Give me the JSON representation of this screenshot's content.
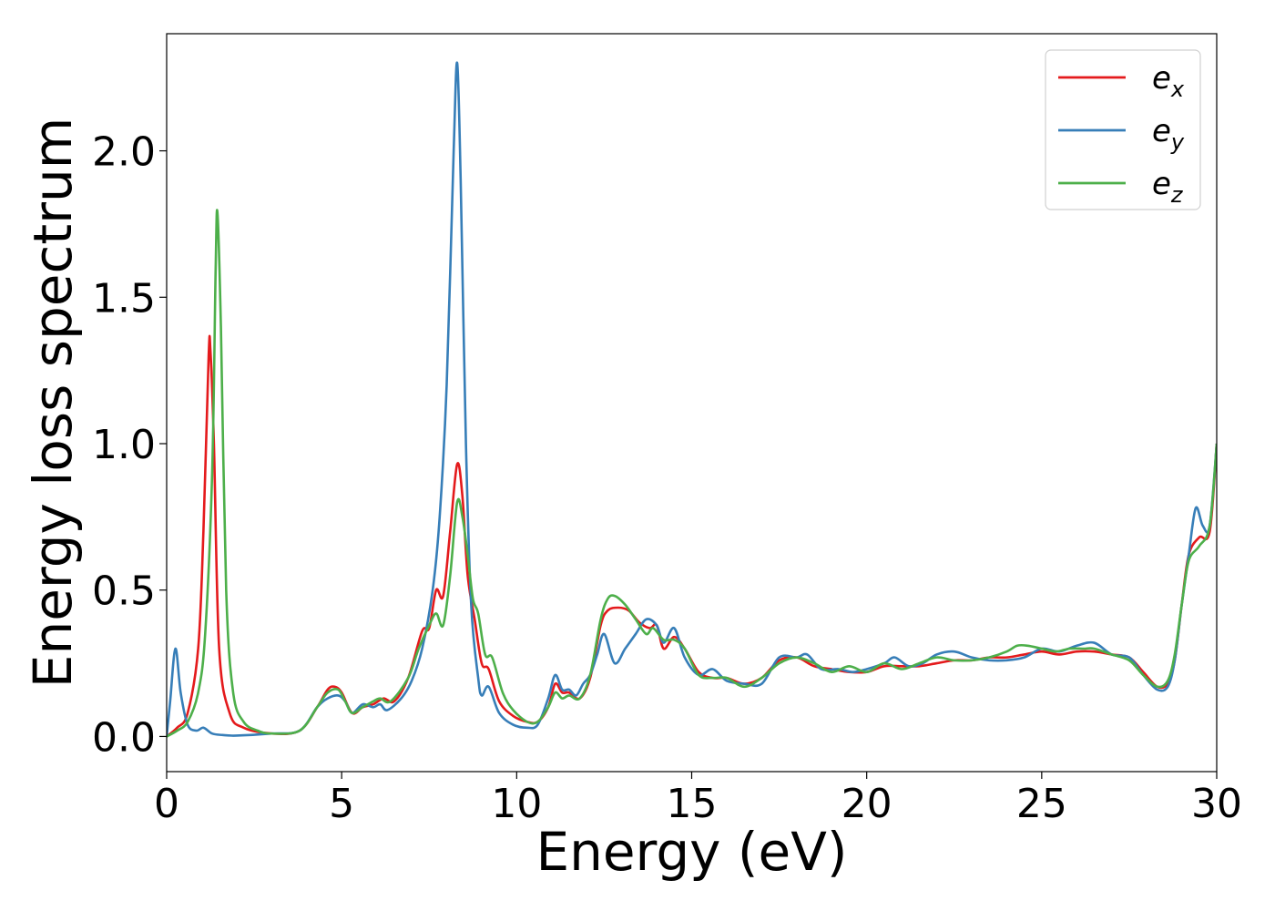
{
  "chart_data": {
    "type": "line",
    "title": "",
    "xlabel": "Energy (eV)",
    "ylabel": "Energy loss spectrum",
    "xlim": [
      0,
      30
    ],
    "ylim": [
      -0.12,
      2.4
    ],
    "xticks": [
      0,
      5,
      10,
      15,
      20,
      25,
      30
    ],
    "xtick_labels": [
      "0",
      "5",
      "10",
      "15",
      "20",
      "25",
      "30"
    ],
    "yticks": [
      0.0,
      0.5,
      1.0,
      1.5,
      2.0
    ],
    "ytick_labels": [
      "0.0",
      "0.5",
      "1.0",
      "1.5",
      "2.0"
    ],
    "grid": false,
    "legend_position": "top-right",
    "series": [
      {
        "name": "e_x",
        "label_base": "e",
        "label_sub": "x",
        "color": "#e41a1c",
        "points": [
          [
            0,
            0.0
          ],
          [
            0.3,
            0.03
          ],
          [
            0.6,
            0.08
          ],
          [
            0.9,
            0.3
          ],
          [
            1.05,
            0.7
          ],
          [
            1.2,
            1.3
          ],
          [
            1.25,
            1.32
          ],
          [
            1.35,
            1.0
          ],
          [
            1.5,
            0.3
          ],
          [
            1.8,
            0.08
          ],
          [
            2.2,
            0.03
          ],
          [
            3,
            0.01
          ],
          [
            3.8,
            0.02
          ],
          [
            4.3,
            0.1
          ],
          [
            4.6,
            0.16
          ],
          [
            4.8,
            0.17
          ],
          [
            5.0,
            0.15
          ],
          [
            5.3,
            0.08
          ],
          [
            5.6,
            0.1
          ],
          [
            5.9,
            0.11
          ],
          [
            6.2,
            0.13
          ],
          [
            6.5,
            0.12
          ],
          [
            6.9,
            0.2
          ],
          [
            7.3,
            0.36
          ],
          [
            7.5,
            0.37
          ],
          [
            7.7,
            0.5
          ],
          [
            7.9,
            0.48
          ],
          [
            8.1,
            0.7
          ],
          [
            8.3,
            0.93
          ],
          [
            8.45,
            0.82
          ],
          [
            8.6,
            0.55
          ],
          [
            8.8,
            0.4
          ],
          [
            9.0,
            0.25
          ],
          [
            9.2,
            0.23
          ],
          [
            9.5,
            0.12
          ],
          [
            9.9,
            0.07
          ],
          [
            10.3,
            0.05
          ],
          [
            10.6,
            0.05
          ],
          [
            10.9,
            0.1
          ],
          [
            11.1,
            0.18
          ],
          [
            11.3,
            0.15
          ],
          [
            11.5,
            0.15
          ],
          [
            11.8,
            0.13
          ],
          [
            12.1,
            0.2
          ],
          [
            12.4,
            0.38
          ],
          [
            12.6,
            0.43
          ],
          [
            12.9,
            0.44
          ],
          [
            13.2,
            0.43
          ],
          [
            13.5,
            0.39
          ],
          [
            13.8,
            0.37
          ],
          [
            14.0,
            0.38
          ],
          [
            14.2,
            0.3
          ],
          [
            14.5,
            0.34
          ],
          [
            14.8,
            0.3
          ],
          [
            15.2,
            0.22
          ],
          [
            15.6,
            0.2
          ],
          [
            16.0,
            0.2
          ],
          [
            16.5,
            0.18
          ],
          [
            17.0,
            0.2
          ],
          [
            17.5,
            0.26
          ],
          [
            18.0,
            0.27
          ],
          [
            18.5,
            0.24
          ],
          [
            19.0,
            0.23
          ],
          [
            19.5,
            0.22
          ],
          [
            20.0,
            0.22
          ],
          [
            20.5,
            0.24
          ],
          [
            21.0,
            0.24
          ],
          [
            21.5,
            0.24
          ],
          [
            22.0,
            0.25
          ],
          [
            22.5,
            0.26
          ],
          [
            23.0,
            0.26
          ],
          [
            23.5,
            0.27
          ],
          [
            24.0,
            0.27
          ],
          [
            24.5,
            0.28
          ],
          [
            25.0,
            0.29
          ],
          [
            25.5,
            0.28
          ],
          [
            26.0,
            0.29
          ],
          [
            26.5,
            0.29
          ],
          [
            27.0,
            0.28
          ],
          [
            27.5,
            0.27
          ],
          [
            27.9,
            0.22
          ],
          [
            28.3,
            0.17
          ],
          [
            28.6,
            0.18
          ],
          [
            28.8,
            0.26
          ],
          [
            29.0,
            0.45
          ],
          [
            29.2,
            0.62
          ],
          [
            29.5,
            0.68
          ],
          [
            29.8,
            0.7
          ],
          [
            30.0,
            1.0
          ]
        ]
      },
      {
        "name": "e_y",
        "label_base": "e",
        "label_sub": "y",
        "color": "#377eb8",
        "points": [
          [
            0,
            0.0
          ],
          [
            0.1,
            0.12
          ],
          [
            0.25,
            0.3
          ],
          [
            0.4,
            0.15
          ],
          [
            0.6,
            0.04
          ],
          [
            0.85,
            0.02
          ],
          [
            1.05,
            0.03
          ],
          [
            1.3,
            0.01
          ],
          [
            1.6,
            0.005
          ],
          [
            2.0,
            0.003
          ],
          [
            3,
            0.01
          ],
          [
            3.8,
            0.02
          ],
          [
            4.3,
            0.1
          ],
          [
            4.6,
            0.13
          ],
          [
            4.9,
            0.14
          ],
          [
            5.1,
            0.12
          ],
          [
            5.3,
            0.08
          ],
          [
            5.6,
            0.11
          ],
          [
            5.9,
            0.1
          ],
          [
            6.1,
            0.11
          ],
          [
            6.3,
            0.09
          ],
          [
            6.7,
            0.13
          ],
          [
            7.0,
            0.19
          ],
          [
            7.3,
            0.3
          ],
          [
            7.6,
            0.5
          ],
          [
            7.8,
            0.75
          ],
          [
            8.0,
            1.2
          ],
          [
            8.2,
            2.0
          ],
          [
            8.3,
            2.3
          ],
          [
            8.4,
            1.9
          ],
          [
            8.55,
            1.0
          ],
          [
            8.7,
            0.45
          ],
          [
            8.9,
            0.2
          ],
          [
            9.0,
            0.14
          ],
          [
            9.2,
            0.17
          ],
          [
            9.5,
            0.08
          ],
          [
            9.9,
            0.04
          ],
          [
            10.3,
            0.03
          ],
          [
            10.6,
            0.04
          ],
          [
            10.9,
            0.13
          ],
          [
            11.1,
            0.21
          ],
          [
            11.3,
            0.16
          ],
          [
            11.5,
            0.16
          ],
          [
            11.7,
            0.14
          ],
          [
            11.9,
            0.18
          ],
          [
            12.1,
            0.21
          ],
          [
            12.3,
            0.28
          ],
          [
            12.5,
            0.35
          ],
          [
            12.8,
            0.25
          ],
          [
            13.1,
            0.3
          ],
          [
            13.4,
            0.35
          ],
          [
            13.7,
            0.4
          ],
          [
            14.0,
            0.38
          ],
          [
            14.2,
            0.32
          ],
          [
            14.5,
            0.37
          ],
          [
            14.8,
            0.27
          ],
          [
            15.2,
            0.21
          ],
          [
            15.6,
            0.23
          ],
          [
            16.0,
            0.19
          ],
          [
            16.5,
            0.18
          ],
          [
            17.0,
            0.18
          ],
          [
            17.5,
            0.27
          ],
          [
            18.0,
            0.27
          ],
          [
            18.3,
            0.28
          ],
          [
            18.7,
            0.23
          ],
          [
            19.2,
            0.23
          ],
          [
            19.6,
            0.22
          ],
          [
            20.0,
            0.23
          ],
          [
            20.5,
            0.25
          ],
          [
            20.8,
            0.27
          ],
          [
            21.2,
            0.24
          ],
          [
            21.6,
            0.25
          ],
          [
            22.0,
            0.28
          ],
          [
            22.5,
            0.29
          ],
          [
            23.0,
            0.27
          ],
          [
            23.5,
            0.26
          ],
          [
            24.0,
            0.26
          ],
          [
            24.5,
            0.27
          ],
          [
            25.0,
            0.3
          ],
          [
            25.5,
            0.29
          ],
          [
            26.0,
            0.31
          ],
          [
            26.5,
            0.32
          ],
          [
            27.0,
            0.28
          ],
          [
            27.5,
            0.27
          ],
          [
            27.9,
            0.21
          ],
          [
            28.3,
            0.16
          ],
          [
            28.6,
            0.17
          ],
          [
            28.8,
            0.26
          ],
          [
            29.0,
            0.45
          ],
          [
            29.2,
            0.62
          ],
          [
            29.4,
            0.78
          ],
          [
            29.6,
            0.72
          ],
          [
            29.8,
            0.72
          ],
          [
            30.0,
            1.0
          ]
        ]
      },
      {
        "name": "e_z",
        "label_base": "e",
        "label_sub": "z",
        "color": "#4daf4a",
        "points": [
          [
            0,
            0.0
          ],
          [
            0.3,
            0.02
          ],
          [
            0.6,
            0.05
          ],
          [
            0.9,
            0.15
          ],
          [
            1.1,
            0.35
          ],
          [
            1.3,
            0.9
          ],
          [
            1.4,
            1.6
          ],
          [
            1.45,
            1.79
          ],
          [
            1.55,
            1.4
          ],
          [
            1.7,
            0.5
          ],
          [
            1.9,
            0.15
          ],
          [
            2.2,
            0.05
          ],
          [
            2.6,
            0.02
          ],
          [
            3,
            0.01
          ],
          [
            3.8,
            0.02
          ],
          [
            4.3,
            0.1
          ],
          [
            4.6,
            0.15
          ],
          [
            4.9,
            0.16
          ],
          [
            5.1,
            0.12
          ],
          [
            5.3,
            0.08
          ],
          [
            5.6,
            0.1
          ],
          [
            5.9,
            0.12
          ],
          [
            6.1,
            0.13
          ],
          [
            6.4,
            0.12
          ],
          [
            6.9,
            0.2
          ],
          [
            7.2,
            0.3
          ],
          [
            7.5,
            0.38
          ],
          [
            7.7,
            0.42
          ],
          [
            7.9,
            0.38
          ],
          [
            8.1,
            0.55
          ],
          [
            8.3,
            0.8
          ],
          [
            8.45,
            0.75
          ],
          [
            8.6,
            0.62
          ],
          [
            8.75,
            0.47
          ],
          [
            8.9,
            0.42
          ],
          [
            9.1,
            0.28
          ],
          [
            9.3,
            0.27
          ],
          [
            9.6,
            0.15
          ],
          [
            9.9,
            0.09
          ],
          [
            10.3,
            0.05
          ],
          [
            10.6,
            0.05
          ],
          [
            10.9,
            0.1
          ],
          [
            11.1,
            0.15
          ],
          [
            11.3,
            0.13
          ],
          [
            11.5,
            0.14
          ],
          [
            11.8,
            0.13
          ],
          [
            12.1,
            0.21
          ],
          [
            12.4,
            0.4
          ],
          [
            12.6,
            0.47
          ],
          [
            12.8,
            0.48
          ],
          [
            13.1,
            0.45
          ],
          [
            13.4,
            0.4
          ],
          [
            13.7,
            0.35
          ],
          [
            13.9,
            0.37
          ],
          [
            14.2,
            0.33
          ],
          [
            14.5,
            0.33
          ],
          [
            14.8,
            0.3
          ],
          [
            15.2,
            0.21
          ],
          [
            15.6,
            0.2
          ],
          [
            16.0,
            0.2
          ],
          [
            16.5,
            0.17
          ],
          [
            17.0,
            0.2
          ],
          [
            17.5,
            0.25
          ],
          [
            18.0,
            0.27
          ],
          [
            18.5,
            0.25
          ],
          [
            19.0,
            0.22
          ],
          [
            19.5,
            0.24
          ],
          [
            20.0,
            0.22
          ],
          [
            20.5,
            0.25
          ],
          [
            21.0,
            0.23
          ],
          [
            21.5,
            0.25
          ],
          [
            22.0,
            0.27
          ],
          [
            22.5,
            0.26
          ],
          [
            23.0,
            0.26
          ],
          [
            23.5,
            0.27
          ],
          [
            24.0,
            0.29
          ],
          [
            24.3,
            0.31
          ],
          [
            24.6,
            0.31
          ],
          [
            25.0,
            0.3
          ],
          [
            25.4,
            0.29
          ],
          [
            25.8,
            0.3
          ],
          [
            26.2,
            0.3
          ],
          [
            26.5,
            0.3
          ],
          [
            27.0,
            0.28
          ],
          [
            27.5,
            0.26
          ],
          [
            27.9,
            0.21
          ],
          [
            28.3,
            0.17
          ],
          [
            28.6,
            0.19
          ],
          [
            28.8,
            0.28
          ],
          [
            29.0,
            0.45
          ],
          [
            29.2,
            0.6
          ],
          [
            29.5,
            0.65
          ],
          [
            29.8,
            0.72
          ],
          [
            30.0,
            1.0
          ]
        ]
      }
    ]
  }
}
